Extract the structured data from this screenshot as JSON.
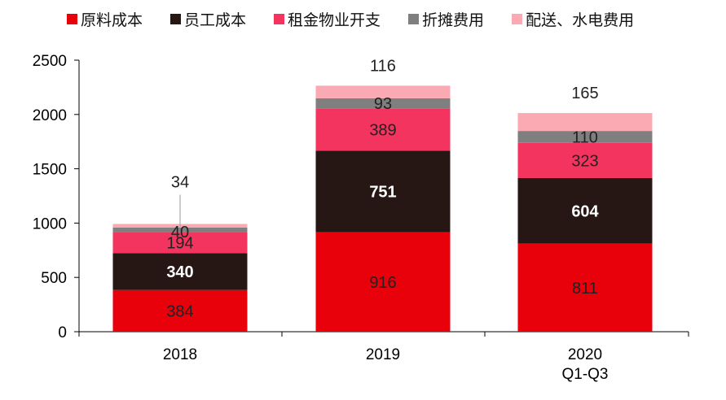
{
  "chart_data": {
    "type": "bar",
    "stacked": true,
    "title": "",
    "xlabel": "",
    "ylabel": "",
    "ylim": [
      0,
      2500
    ],
    "yticks": [
      0,
      500,
      1000,
      1500,
      2000,
      2500
    ],
    "categories": [
      {
        "line1": "2018",
        "line2": ""
      },
      {
        "line1": "2019",
        "line2": ""
      },
      {
        "line1": "2020",
        "line2": "Q1-Q3"
      }
    ],
    "series": [
      {
        "name": "原料成本",
        "color": "#e8000b",
        "label_color": "#222222",
        "values": [
          384,
          916,
          811
        ]
      },
      {
        "name": "员工成本",
        "color": "#261714",
        "label_color": "#ffffff",
        "values": [
          340,
          751,
          604
        ]
      },
      {
        "name": "租金物业开支",
        "color": "#f2345e",
        "label_color": "#222222",
        "values": [
          194,
          389,
          323
        ]
      },
      {
        "name": "折摊费用",
        "color": "#7f7f7f",
        "label_color": "#222222",
        "values": [
          40,
          93,
          110
        ]
      },
      {
        "name": "配送、水电费用",
        "color": "#fbaab3",
        "label_color": "#222222",
        "values": [
          34,
          116,
          165
        ]
      }
    ],
    "legend_position": "top"
  }
}
